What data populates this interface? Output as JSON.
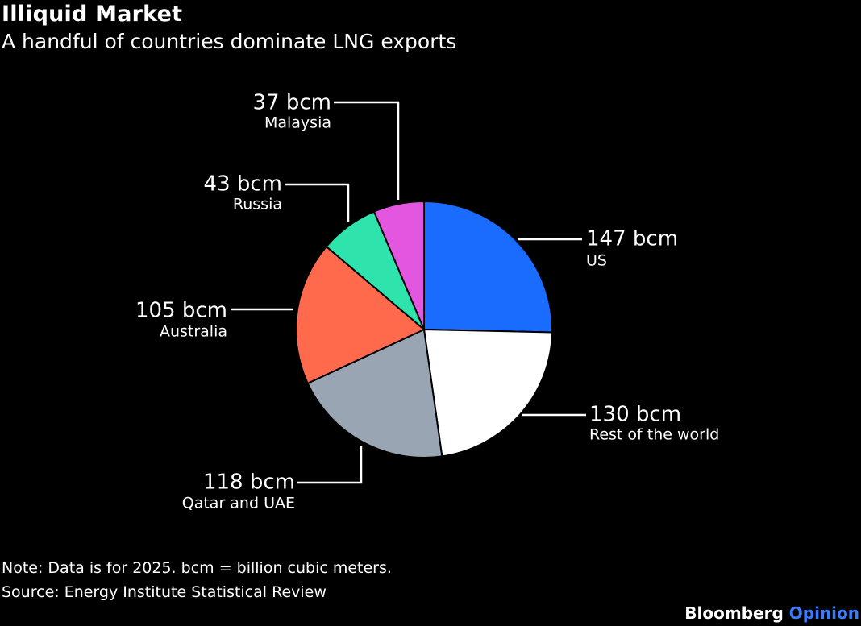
{
  "title": "Illiquid Market",
  "subtitle": "A handful of countries dominate LNG exports",
  "note": "Note: Data is for 2025. bcm = billion cubic meters.",
  "source": "Source: Energy Institute Statistical Review",
  "brand": {
    "name": "Bloomberg",
    "suffix": "Opinion",
    "suffix_color": "#3a7bff"
  },
  "chart_data": {
    "type": "pie",
    "unit": "bcm",
    "start_angle": "12 o'clock, clockwise",
    "slices": [
      {
        "label": "US",
        "value": 147,
        "value_label": "147 bcm",
        "color": "#1a6cff"
      },
      {
        "label": "Rest of the world",
        "value": 130,
        "value_label": "130 bcm",
        "color": "#ffffff"
      },
      {
        "label": "Qatar and UAE",
        "value": 118,
        "value_label": "118 bcm",
        "color": "#9aa5b4"
      },
      {
        "label": "Australia",
        "value": 105,
        "value_label": "105 bcm",
        "color": "#ff6a4d"
      },
      {
        "label": "Russia",
        "value": 43,
        "value_label": "43 bcm",
        "color": "#2fe3ad"
      },
      {
        "label": "Malaysia",
        "value": 37,
        "value_label": "37 bcm",
        "color": "#e356e0"
      }
    ]
  }
}
